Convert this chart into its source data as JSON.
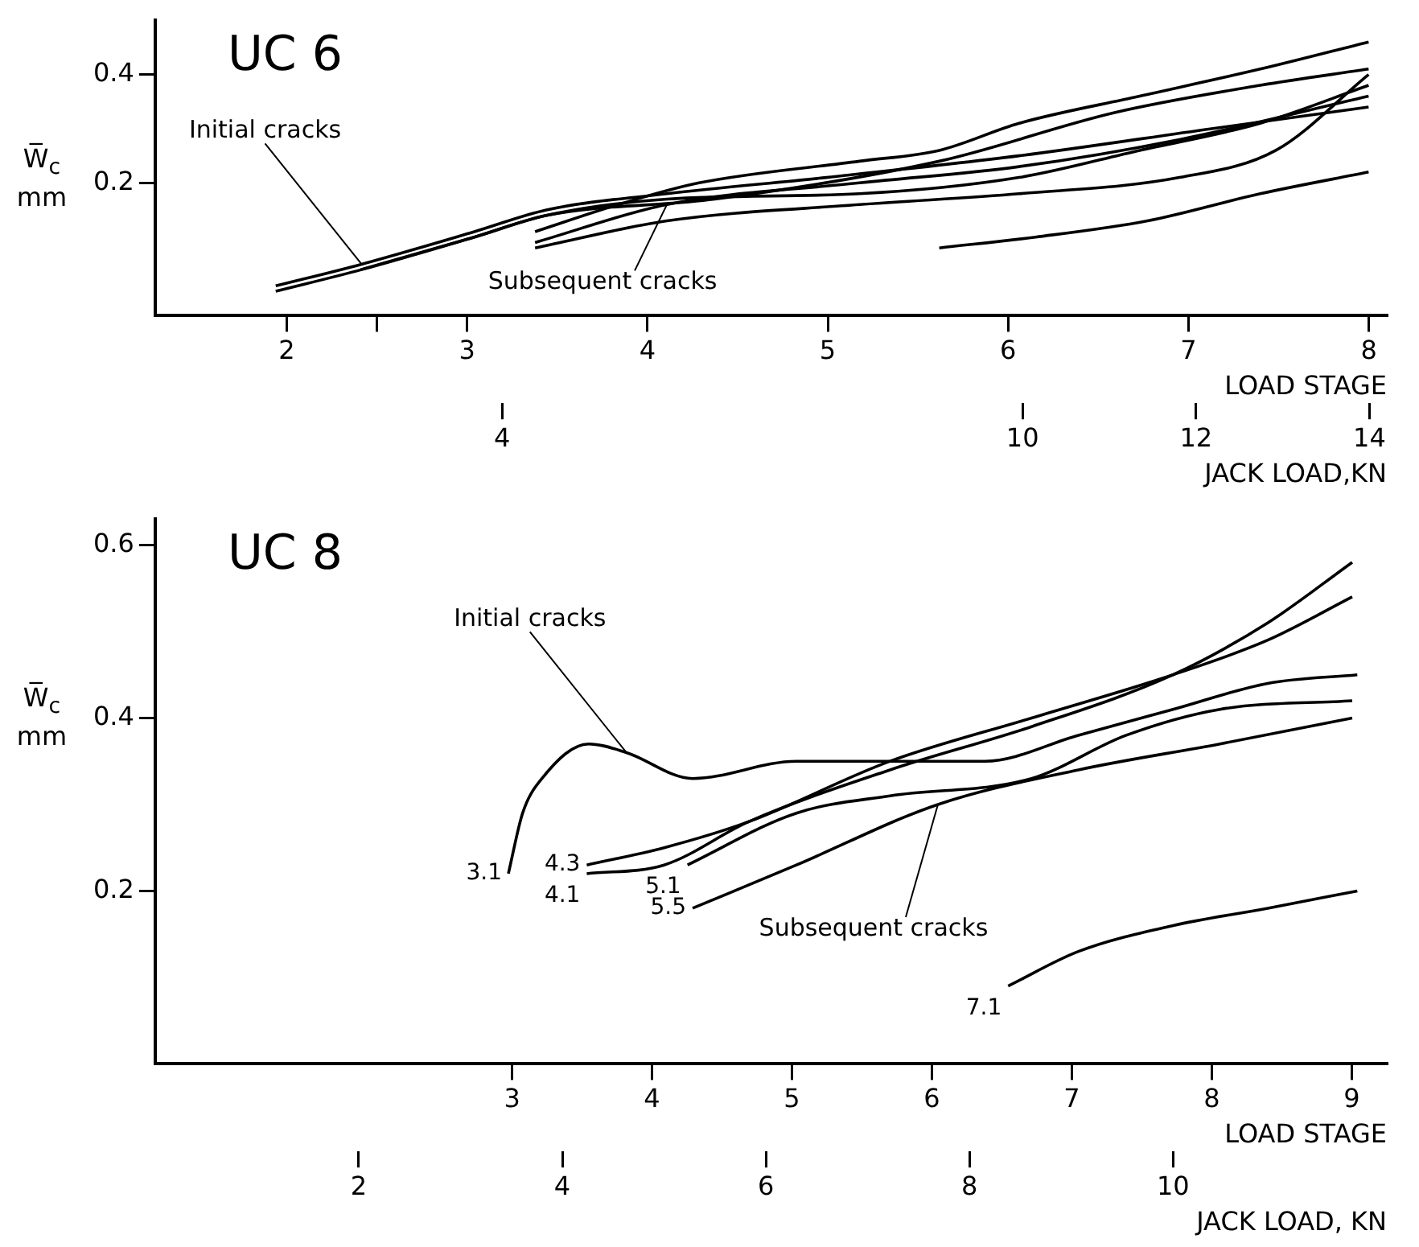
{
  "chart_data": [
    {
      "type": "line",
      "title": "UC 6",
      "xlabel": "JACK LOAD,KN",
      "ylabel": "W̅$_{c}$ mm",
      "x2label": "LOAD STAGE",
      "xlim": [
        0,
        14.2
      ],
      "xticks": [
        4,
        10,
        12,
        14
      ],
      "x2lim": [
        1.27,
        8.1
      ],
      "x2ticks": [
        2,
        {
          "value": 2.5,
          "label": null
        },
        3,
        4,
        5,
        6,
        7,
        8
      ],
      "ylim": [
        -0.045,
        0.5
      ],
      "yticks": [
        0.2,
        0.4
      ],
      "annotations": [
        {
          "text": "Initial cracks",
          "x": 2.38,
          "y": 0.05
        },
        {
          "text": "Subsequent cracks",
          "x": 5.9,
          "y": 0.16
        }
      ],
      "series": [
        {
          "color": "#000000",
          "x": [
            1.39,
            2.38,
            3.68,
            4.51,
            5.9,
            7.74,
            9.96,
            12.18,
            13.99
          ],
          "values": [
            0.01,
            0.05,
            0.11,
            0.15,
            0.18,
            0.21,
            0.25,
            0.3,
            0.34
          ]
        },
        {
          "color": "#000000",
          "x": [
            1.39,
            2.38,
            3.68,
            4.51,
            6.45,
            9.04,
            11.07,
            12.74,
            13.99
          ],
          "values": [
            0.0,
            0.04,
            0.1,
            0.14,
            0.17,
            0.24,
            0.33,
            0.38,
            0.41
          ]
        },
        {
          "color": "#000000",
          "x": [
            2.37,
            3.68,
            4.51,
            5.9,
            8.12,
            9.96,
            11.35,
            12.74,
            13.99
          ],
          "values": [
            0.04,
            0.1,
            0.14,
            0.17,
            0.18,
            0.21,
            0.26,
            0.31,
            0.38
          ]
        },
        {
          "color": "#000000",
          "x": [
            4.38,
            5.34,
            6.27,
            8.12,
            9.04,
            9.96,
            11.35,
            12.74,
            13.99
          ],
          "values": [
            0.11,
            0.16,
            0.2,
            0.24,
            0.26,
            0.31,
            0.36,
            0.41,
            0.46
          ]
        },
        {
          "color": "#000000",
          "x": [
            4.38,
            5.9,
            8.12,
            9.96,
            11.81,
            13.99
          ],
          "values": [
            0.09,
            0.16,
            0.2,
            0.23,
            0.28,
            0.36
          ]
        },
        {
          "color": "#000000",
          "x": [
            4.38,
            5.9,
            8.12,
            9.96,
            11.81,
            12.92,
            13.99
          ],
          "values": [
            0.08,
            0.13,
            0.16,
            0.18,
            0.21,
            0.26,
            0.4
          ]
        },
        {
          "color": "#000000",
          "x": [
            9.04,
            10.15,
            11.44,
            12.74,
            13.99
          ],
          "values": [
            0.08,
            0.1,
            0.13,
            0.18,
            0.22
          ]
        }
      ]
    },
    {
      "type": "line",
      "title": "UC 8",
      "xlabel": "JACK LOAD, KN",
      "ylabel": "W̅$_{c}$ mm",
      "x2label": "LOAD STAGE",
      "xlim": [
        0,
        12.1
      ],
      "xticks": [
        2,
        4,
        6,
        8,
        10
      ],
      "x2lim": [
        0.45,
        9.25
      ],
      "x2ticks": [
        3,
        4,
        5,
        6,
        7,
        8,
        9
      ],
      "ylim": [
        0,
        0.63
      ],
      "yticks": [
        0.2,
        0.4,
        0.6
      ],
      "annotations": [
        {
          "text": "Initial cracks",
          "x": 4.63,
          "y": 0.36
        },
        {
          "text": "Subsequent cracks",
          "x": 7.69,
          "y": 0.3
        }
      ],
      "series": [
        {
          "name": "3.1",
          "color": "#000000",
          "x": [
            3.47,
            3.61,
            3.8,
            4.26,
            4.63,
            5.28,
            6.3,
            7.22,
            8.15,
            9.07,
            10.0,
            10.93,
            11.81
          ],
          "values": [
            0.22,
            0.29,
            0.33,
            0.37,
            0.36,
            0.33,
            0.35,
            0.35,
            0.35,
            0.38,
            0.41,
            0.44,
            0.45
          ]
        },
        {
          "name": "4.1",
          "color": "#000000",
          "x": [
            4.24,
            5.0,
            5.83,
            7.22,
            8.61,
            10.0,
            10.93,
            11.76
          ],
          "values": [
            0.22,
            0.23,
            0.28,
            0.34,
            0.39,
            0.45,
            0.51,
            0.58
          ]
        },
        {
          "name": "4.3",
          "color": "#000000",
          "x": [
            4.24,
            5.0,
            5.83,
            7.22,
            8.61,
            10.0,
            10.93,
            11.76
          ],
          "values": [
            0.23,
            0.25,
            0.28,
            0.35,
            0.4,
            0.45,
            0.49,
            0.54
          ]
        },
        {
          "name": "5.1",
          "color": "#000000",
          "x": [
            5.23,
            6.3,
            7.22,
            8.61,
            9.54,
            10.46,
            11.76
          ],
          "values": [
            0.23,
            0.29,
            0.31,
            0.33,
            0.38,
            0.41,
            0.42
          ]
        },
        {
          "name": "5.5",
          "color": "#000000",
          "x": [
            5.28,
            6.3,
            7.69,
            9.07,
            10.46,
            11.76
          ],
          "values": [
            0.18,
            0.23,
            0.3,
            0.34,
            0.37,
            0.4
          ]
        },
        {
          "name": "7.1",
          "color": "#000000",
          "x": [
            8.38,
            9.07,
            10.0,
            10.93,
            11.81
          ],
          "values": [
            0.09,
            0.13,
            0.16,
            0.18,
            0.2
          ]
        }
      ]
    }
  ]
}
